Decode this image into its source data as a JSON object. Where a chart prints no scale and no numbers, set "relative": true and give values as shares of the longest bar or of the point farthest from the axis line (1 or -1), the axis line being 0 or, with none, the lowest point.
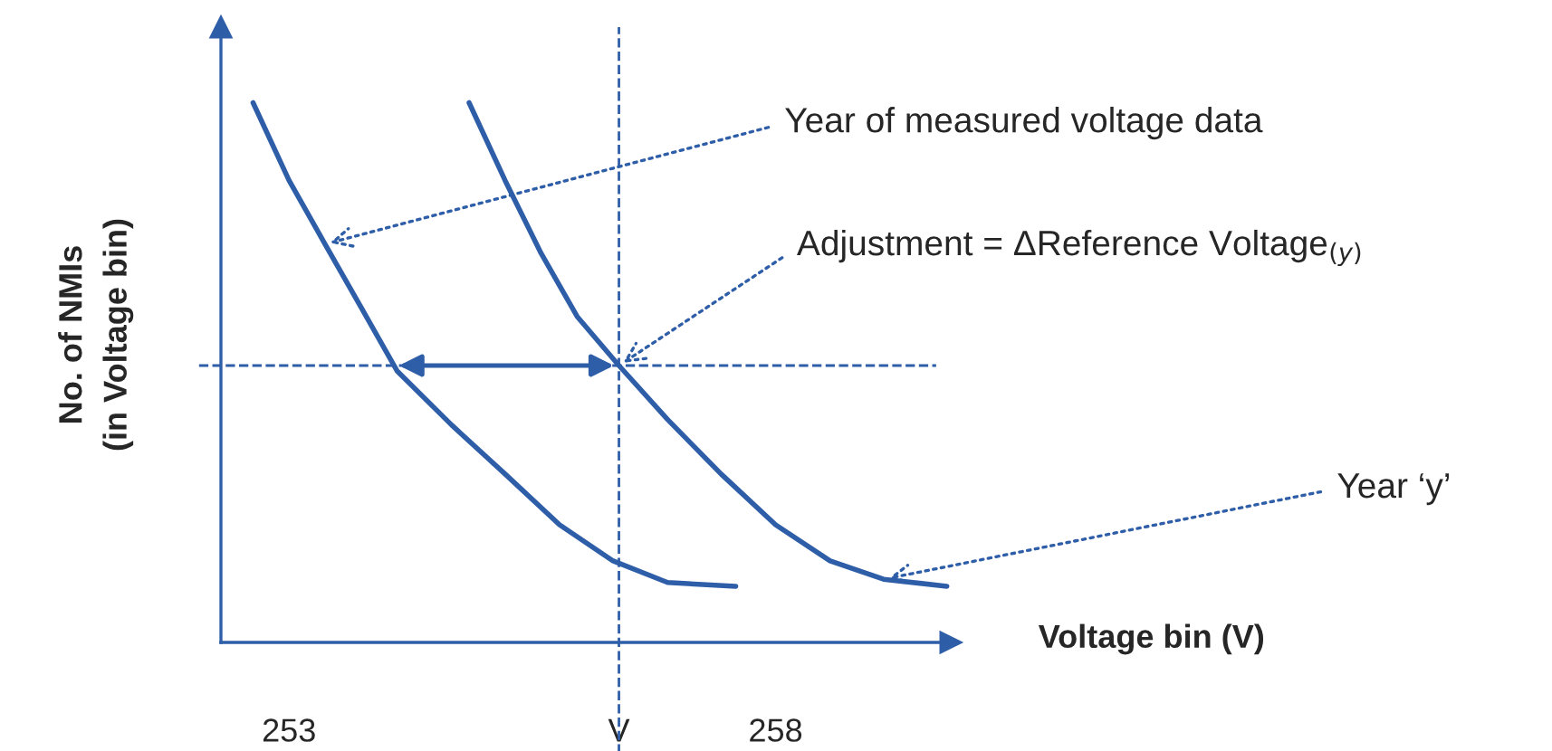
{
  "chart_data": {
    "type": "line",
    "relative": true,
    "xlabel": "Voltage bin (V)",
    "ylabel": "No. of NMIs\n(in Voltage bin)",
    "xlim": [
      252.3,
      259.8
    ],
    "xticks": [
      253,
      {
        "value": 256.39,
        "label": "V"
      },
      258
    ],
    "series": [
      {
        "color": "#2f5ea8",
        "x": [
          252.63,
          253,
          253.37,
          253.74,
          254.11,
          254.67,
          255.22,
          255.78,
          256.33,
          256.89,
          257.59
        ],
        "values": [
          1,
          0.856,
          0.738,
          0.621,
          0.503,
          0.403,
          0.312,
          0.218,
          0.151,
          0.111,
          0.104
        ]
      },
      {
        "color": "#2f5ea8",
        "x": [
          254.85,
          255.22,
          255.59,
          255.96,
          256.39,
          256.89,
          257.44,
          258,
          258.56,
          259.11,
          259.76
        ],
        "values": [
          1,
          0.856,
          0.721,
          0.604,
          0.513,
          0.413,
          0.312,
          0.218,
          0.151,
          0.117,
          0.104
        ]
      }
    ],
    "ref_lines": [
      {
        "axis": "x",
        "value": 256.39,
        "color": "#2f5ea8",
        "line_style": "dashed"
      },
      {
        "axis": "y",
        "value": 0.513,
        "color": "#2f5ea8",
        "line_style": "dashed"
      }
    ],
    "annotations": [
      {
        "text": "Year of measured voltage data",
        "x": 253.37,
        "y": 0.738
      },
      {
        "text": "Adjustment = ΔReference Voltage$_{(y)}$",
        "x": 256.39,
        "y": 0.513
      },
      {
        "text": "Year ‘y’",
        "x": 259.11,
        "y": 0.117
      }
    ],
    "grid": false,
    "marker": "none",
    "line_style": "solid"
  }
}
